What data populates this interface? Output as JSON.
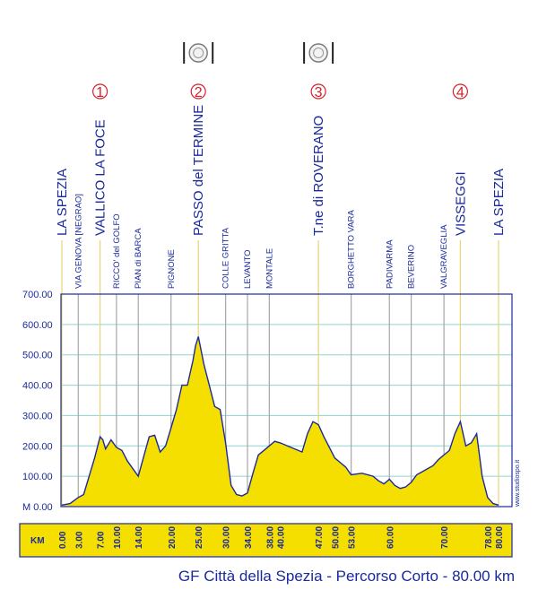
{
  "chart_data": {
    "type": "area",
    "title": "GF Città della Spezia - Percorso Corto - 80.00 km",
    "credit": "www.studiospo.it",
    "km_label": "KM",
    "ylim": [
      0,
      700
    ],
    "xlim": [
      0,
      80
    ],
    "y_ticks": [
      "M 0.00",
      "100.00",
      "200.00",
      "300.00",
      "400.00",
      "500.00",
      "600.00",
      "700.00"
    ],
    "km_ticks": [
      "0.00",
      "3.00",
      "7.00",
      "10.00",
      "14.00",
      "20.00",
      "25.00",
      "30.00",
      "34.00",
      "38.00",
      "40.00",
      "47.00",
      "50.00",
      "53.00",
      "60.00",
      "70.00",
      "78.00",
      "80.00"
    ],
    "profile": {
      "x": [
        0,
        1.5,
        3,
        4,
        5,
        6,
        7,
        7.5,
        8,
        9,
        10,
        11,
        12,
        14,
        16,
        17,
        18,
        19,
        20,
        21,
        22,
        23,
        24,
        24.5,
        25,
        26,
        27,
        28,
        29,
        30,
        31,
        32,
        33,
        34,
        35,
        36,
        37,
        38,
        39,
        40,
        42,
        44,
        45,
        46,
        47,
        48,
        50,
        51,
        52,
        53,
        55,
        57,
        58,
        59,
        60,
        61,
        62,
        63,
        64,
        65,
        66,
        68,
        69,
        70,
        71,
        72,
        73,
        74,
        75,
        76,
        77,
        78,
        79,
        80
      ],
      "y": [
        5,
        10,
        30,
        40,
        100,
        160,
        230,
        220,
        190,
        220,
        195,
        185,
        150,
        100,
        230,
        235,
        180,
        200,
        260,
        320,
        400,
        400,
        480,
        530,
        560,
        470,
        400,
        330,
        320,
        210,
        70,
        40,
        35,
        45,
        110,
        170,
        185,
        200,
        215,
        210,
        195,
        180,
        240,
        280,
        270,
        230,
        160,
        145,
        130,
        105,
        110,
        100,
        85,
        75,
        90,
        70,
        60,
        65,
        80,
        105,
        115,
        135,
        155,
        170,
        185,
        240,
        280,
        200,
        210,
        240,
        100,
        30,
        10,
        5
      ]
    },
    "waypoints": [
      {
        "name": "LA SPEZIA",
        "km": 0,
        "size": "big"
      },
      {
        "name": "VIA GENOVA [NEGRAO]",
        "km": 3,
        "size": "small"
      },
      {
        "name": "VALLICO LA FOCE",
        "km": 7,
        "size": "big",
        "marker": "1"
      },
      {
        "name": "RICCO' del GOLFO",
        "km": 10,
        "size": "small"
      },
      {
        "name": "PIAN di BARCA",
        "km": 14,
        "size": "small"
      },
      {
        "name": "PIGNONE",
        "km": 20,
        "size": "small"
      },
      {
        "name": "PASSO del TERMINE",
        "km": 25,
        "size": "big",
        "marker": "2",
        "food": true
      },
      {
        "name": "COLLE GRITTA",
        "km": 30,
        "size": "small"
      },
      {
        "name": "LEVANTO",
        "km": 34,
        "size": "small"
      },
      {
        "name": "MONTALE",
        "km": 38,
        "size": "small"
      },
      {
        "name": "T.ne di ROVERANO",
        "km": 47,
        "size": "big",
        "marker": "3",
        "food": true
      },
      {
        "name": "BORGHETTO VARA",
        "km": 53,
        "size": "small"
      },
      {
        "name": "PADIVARMA",
        "km": 60,
        "size": "small"
      },
      {
        "name": "BEVERINO",
        "km": 64,
        "size": "small"
      },
      {
        "name": "VALGRAVEGLIA",
        "km": 70,
        "size": "small"
      },
      {
        "name": "VISSEGGI",
        "km": 73,
        "size": "big",
        "marker": "4"
      },
      {
        "name": "LA SPEZIA",
        "km": 80,
        "size": "big"
      }
    ],
    "colors": {
      "fill": "#f5df00",
      "outline": "#1a2a9c",
      "label": "#1a2a9c",
      "marker": "#d4202a",
      "grid": "#8fd3cf",
      "yellow_line": "#e8d27a",
      "gray_line": "#a6a6a6"
    }
  }
}
